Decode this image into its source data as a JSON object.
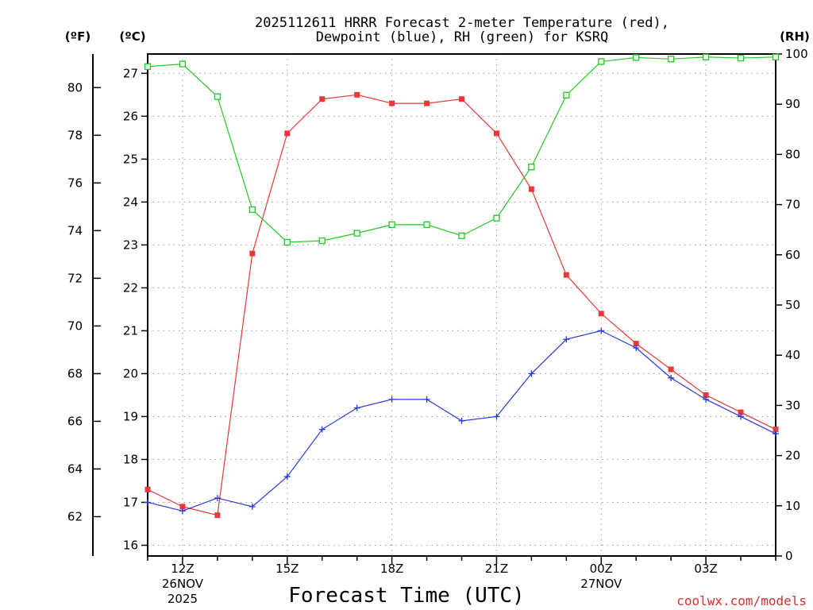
{
  "chart_data": {
    "type": "line",
    "title_line1": "2025112611 HRRR Forecast 2-meter Temperature (red),",
    "title_line2": "Dewpoint (blue), RH (green) for KSRQ",
    "xlabel": "Forecast Time (UTC)",
    "x_hours": [
      11,
      12,
      13,
      14,
      15,
      16,
      17,
      18,
      19,
      20,
      21,
      22,
      23,
      24,
      25,
      26,
      27,
      28,
      29
    ],
    "x_tick_hours": [
      12,
      15,
      18,
      21,
      24,
      27
    ],
    "x_tick_labels": [
      {
        "l1": "12Z",
        "l2": "26NOV",
        "l3": "2025"
      },
      {
        "l1": "15Z",
        "l2": "",
        "l3": ""
      },
      {
        "l1": "18Z",
        "l2": "",
        "l3": ""
      },
      {
        "l1": "21Z",
        "l2": "",
        "l3": ""
      },
      {
        "l1": "00Z",
        "l2": "27NOV",
        "l3": ""
      },
      {
        "l1": "03Z",
        "l2": "",
        "l3": ""
      }
    ],
    "x_range": [
      11,
      29
    ],
    "left_unit_f": "(ºF)",
    "left_unit_c": "(ºC)",
    "right_unit": "(RH)",
    "celsius_range": [
      15.75,
      27.45
    ],
    "celsius_ticks": [
      "16",
      "17",
      "18",
      "19",
      "20",
      "21",
      "22",
      "23",
      "24",
      "25",
      "26",
      "27"
    ],
    "fahrenheit_ticks": [
      "62",
      "64",
      "66",
      "68",
      "70",
      "72",
      "74",
      "76",
      "78",
      "80"
    ],
    "rh_range": [
      0,
      100
    ],
    "rh_ticks": [
      "0",
      "10",
      "20",
      "30",
      "40",
      "50",
      "60",
      "70",
      "80",
      "90",
      "100"
    ],
    "series": [
      {
        "name": "Temperature",
        "unit": "C",
        "color": "#e83838",
        "marker": "filled-square",
        "values": [
          17.3,
          16.9,
          16.7,
          22.8,
          25.6,
          26.4,
          26.5,
          26.3,
          26.3,
          26.4,
          25.6,
          24.3,
          22.3,
          21.4,
          20.7,
          20.1,
          19.5,
          19.1,
          18.7
        ]
      },
      {
        "name": "Dewpoint",
        "unit": "C",
        "color": "#2838e0",
        "marker": "plus",
        "values": [
          17.0,
          16.8,
          17.1,
          16.9,
          17.6,
          18.7,
          19.2,
          19.4,
          19.4,
          18.9,
          19.0,
          20.0,
          20.8,
          21.0,
          20.6,
          19.9,
          19.4,
          19.0,
          18.6
        ]
      },
      {
        "name": "RH",
        "unit": "%",
        "color": "#22c822",
        "marker": "open-square",
        "values": [
          97.5,
          98,
          91.5,
          69,
          62.5,
          62.8,
          64.3,
          66,
          66,
          63.8,
          67.3,
          77.5,
          91.8,
          98.5,
          99.3,
          99,
          99.4,
          99.2,
          99.4
        ]
      }
    ],
    "grid": true
  },
  "credit": "coolwx.com/models"
}
